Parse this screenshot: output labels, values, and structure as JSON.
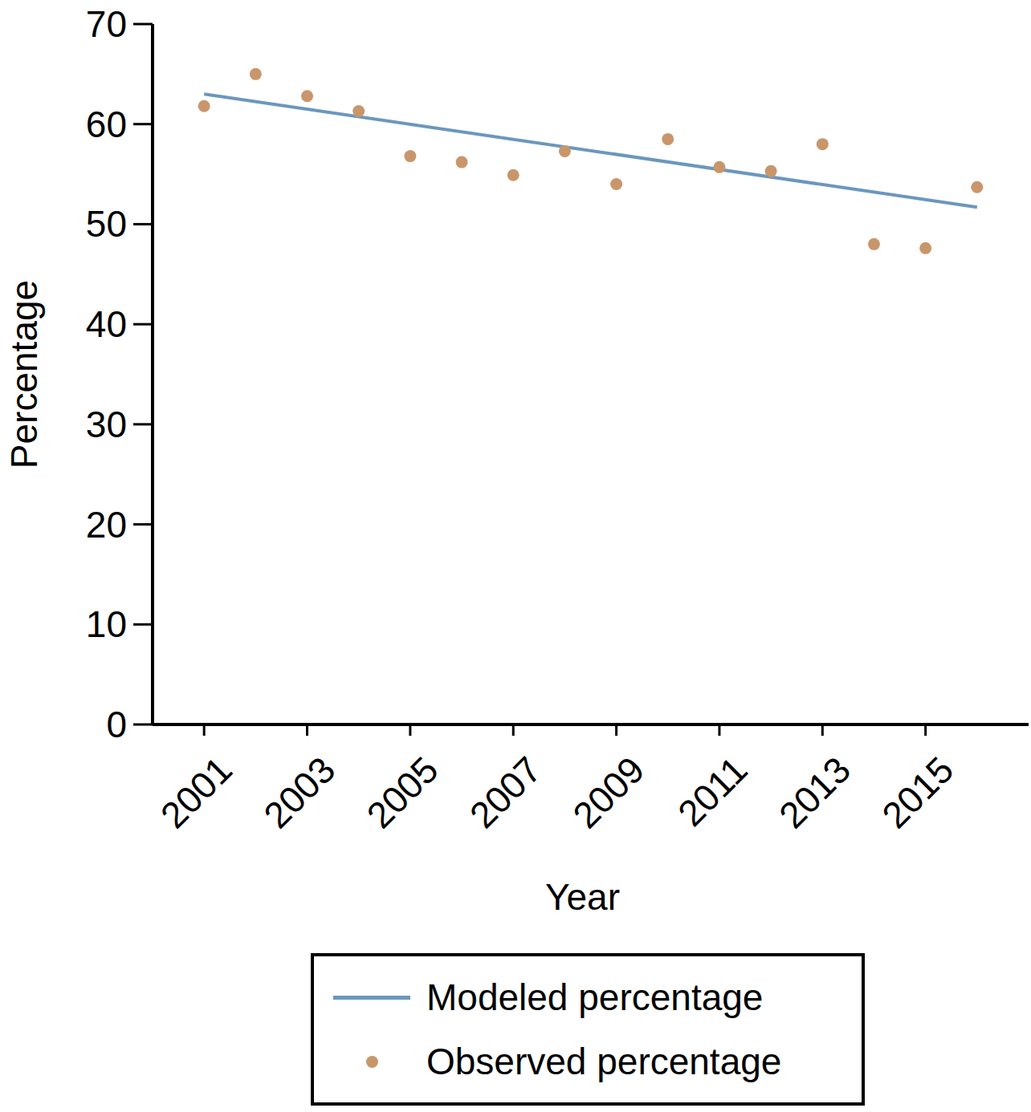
{
  "chart_data": {
    "type": "scatter",
    "x_label": "Year",
    "y_label": "Percentage",
    "xlim": [
      2000,
      2017
    ],
    "xticks": [
      2001,
      2003,
      2005,
      2007,
      2009,
      2011,
      2013,
      2015
    ],
    "ylim": [
      0,
      70
    ],
    "yticks": [
      0,
      10,
      20,
      30,
      40,
      50,
      60,
      70
    ],
    "legend": "bottom",
    "series": [
      {
        "name": "Modeled percentage",
        "type": "line",
        "color": "#6b97bd",
        "x": [
          2001,
          2016
        ],
        "values": [
          63.0,
          51.7
        ]
      },
      {
        "name": "Observed percentage",
        "type": "scatter",
        "marker": "circle",
        "color": "#c9966b",
        "x": [
          2001,
          2002,
          2003,
          2004,
          2005,
          2006,
          2007,
          2008,
          2009,
          2010,
          2011,
          2012,
          2013,
          2014,
          2015,
          2016
        ],
        "values": [
          61.8,
          65.0,
          62.8,
          61.3,
          56.8,
          56.2,
          54.9,
          57.3,
          54.0,
          58.5,
          55.7,
          55.3,
          58.0,
          48.0,
          47.6,
          53.7
        ]
      }
    ]
  }
}
